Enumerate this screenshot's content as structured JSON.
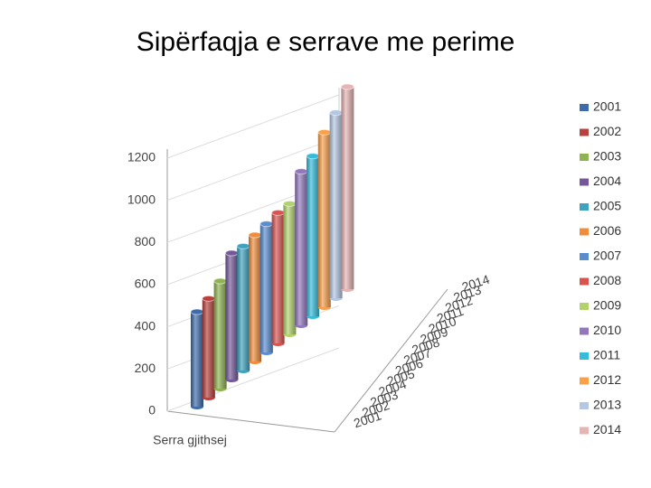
{
  "chart_data": {
    "type": "cylinder3d",
    "title": "Sipërfaqja e  serrave me perime",
    "categories": [
      "Serra gjithsej"
    ],
    "ylim": [
      0,
      1200
    ],
    "yticks": [
      0,
      200,
      400,
      600,
      800,
      1000,
      1200
    ],
    "grid": true,
    "series": [
      {
        "name": "2001",
        "color": "#3d6bab",
        "values": [
          450
        ]
      },
      {
        "name": "2002",
        "color": "#b8413e",
        "values": [
          470
        ]
      },
      {
        "name": "2003",
        "color": "#8fb350",
        "values": [
          510
        ]
      },
      {
        "name": "2004",
        "color": "#74589a",
        "values": [
          600
        ]
      },
      {
        "name": "2005",
        "color": "#3ea3bf",
        "values": [
          590
        ]
      },
      {
        "name": "2006",
        "color": "#f08c3a",
        "values": [
          600
        ]
      },
      {
        "name": "2007",
        "color": "#5a8dd0",
        "values": [
          610
        ]
      },
      {
        "name": "2008",
        "color": "#d9534f",
        "values": [
          620
        ]
      },
      {
        "name": "2009",
        "color": "#b2d36b",
        "values": [
          620
        ]
      },
      {
        "name": "2010",
        "color": "#9277bd",
        "values": [
          730
        ]
      },
      {
        "name": "2011",
        "color": "#35bcdb",
        "values": [
          760
        ]
      },
      {
        "name": "2012",
        "color": "#f9a04b",
        "values": [
          830
        ]
      },
      {
        "name": "2013",
        "color": "#b4c8e3",
        "values": [
          880
        ]
      },
      {
        "name": "2014",
        "color": "#e5b4b3",
        "values": [
          960
        ]
      }
    ]
  }
}
